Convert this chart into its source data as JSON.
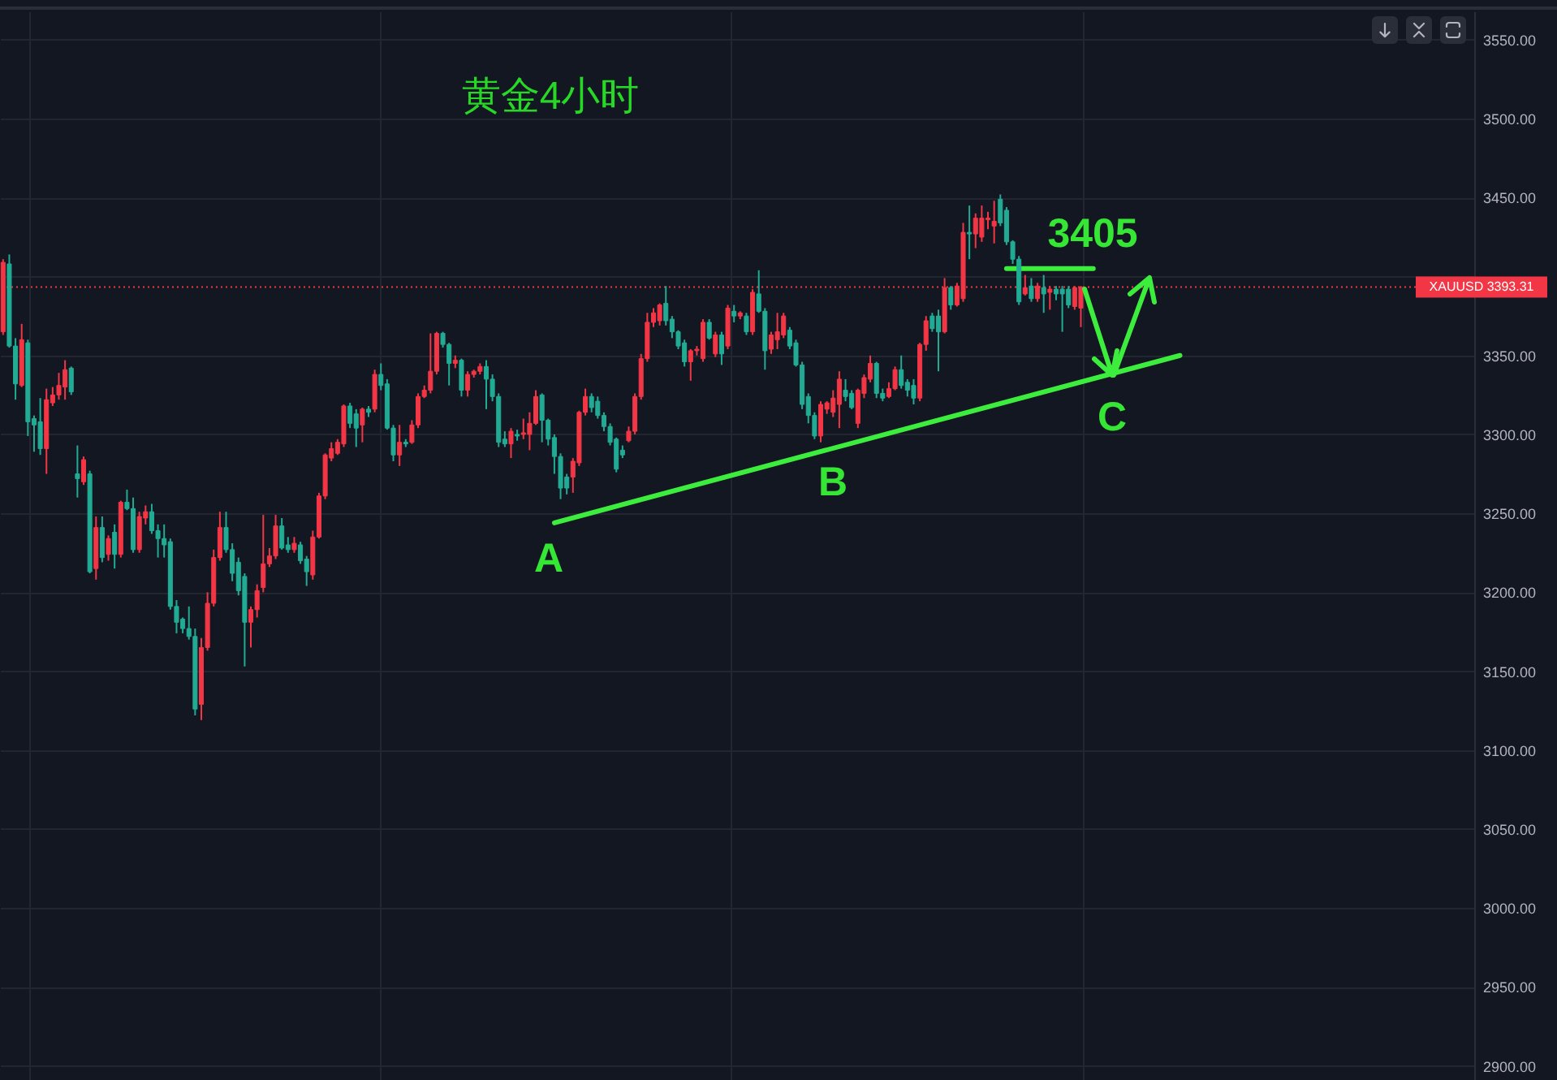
{
  "chart_data": {
    "type": "candlestick",
    "title": "黄金4小时",
    "categories": [
      null,
      null,
      null,
      null,
      null,
      null,
      null,
      null,
      null,
      null,
      null,
      null,
      null,
      null,
      null,
      null,
      null,
      null,
      null,
      null,
      null,
      null,
      null,
      null,
      null,
      null,
      null,
      null,
      null,
      null,
      null,
      null,
      null,
      null,
      null,
      null,
      null,
      null,
      null,
      null,
      null,
      null,
      null,
      null,
      null,
      null,
      null,
      null,
      null,
      null,
      null,
      null,
      null,
      null,
      null,
      null,
      null,
      null,
      null,
      null,
      null,
      null,
      null,
      null,
      null,
      null,
      null,
      null,
      null,
      null,
      null,
      null,
      null,
      null,
      null,
      null,
      null,
      null,
      null,
      null,
      null,
      null,
      null,
      null,
      null,
      null,
      null,
      null,
      null,
      null,
      null,
      null,
      null,
      null,
      null,
      null,
      null,
      null,
      null,
      null,
      null,
      null,
      null,
      null,
      null,
      null,
      null,
      null,
      null,
      null,
      null,
      null,
      null,
      null,
      null,
      null,
      null,
      null,
      null,
      null,
      null,
      null,
      null,
      null,
      null,
      null,
      null,
      null,
      null,
      null,
      null,
      null,
      null,
      null,
      null,
      null,
      null,
      null,
      null,
      null,
      null,
      null,
      null,
      null,
      null,
      null,
      null,
      null,
      null,
      null,
      null,
      null,
      null,
      null,
      null,
      null,
      null,
      null,
      null,
      null,
      null,
      null,
      null,
      null,
      null,
      null,
      null,
      null,
      null,
      null,
      null,
      null,
      null,
      null,
      null,
      null,
      null,
      null,
      null,
      null,
      null,
      null,
      null,
      null,
      null,
      null,
      null,
      null,
      null,
      null,
      null,
      null,
      null,
      null,
      null,
      null,
      null,
      null,
      null,
      null,
      null,
      null,
      null,
      null,
      null,
      null,
      null,
      null,
      null,
      null,
      null,
      null,
      null,
      null,
      null,
      null,
      null,
      null,
      null,
      null,
      null,
      null,
      null,
      null,
      null,
      null,
      null,
      null,
      null,
      null,
      null,
      null,
      null,
      null,
      null,
      null,
      null,
      null
    ],
    "ohlc": [
      [
        3365,
        3411,
        3363,
        3409
      ],
      [
        3408,
        3414,
        3355,
        3356
      ],
      [
        3356,
        3361,
        3322,
        3332
      ],
      [
        3331,
        3370,
        3330,
        3360
      ],
      [
        3358,
        3360,
        3299,
        3308
      ],
      [
        3310,
        3312,
        3289,
        3306
      ],
      [
        3308,
        3323,
        3287,
        3291
      ],
      [
        3291,
        3329,
        3275,
        3322
      ],
      [
        3320,
        3330,
        3318,
        3325
      ],
      [
        3325,
        3339,
        3322,
        3331
      ],
      [
        3330,
        3347,
        3322,
        3341
      ],
      [
        3342,
        3343,
        3325,
        3327
      ],
      [
        3275,
        3293,
        3260,
        3272
      ],
      [
        3270,
        3286,
        3268,
        3284
      ],
      [
        3275,
        3277,
        3212,
        3213
      ],
      [
        3215,
        3248,
        3208,
        3241
      ],
      [
        3241,
        3248,
        3219,
        3222
      ],
      [
        3224,
        3236,
        3220,
        3234
      ],
      [
        3238,
        3243,
        3215,
        3224
      ],
      [
        3224,
        3258,
        3222,
        3257
      ],
      [
        3257,
        3265,
        3252,
        3253
      ],
      [
        3253,
        3260,
        3225,
        3227
      ],
      [
        3227,
        3251,
        3225,
        3248
      ],
      [
        3247,
        3255,
        3243,
        3251
      ],
      [
        3251,
        3256,
        3237,
        3239
      ],
      [
        3239,
        3243,
        3222,
        3234
      ],
      [
        3234,
        3243,
        3222,
        3230
      ],
      [
        3232,
        3234,
        3189,
        3191
      ],
      [
        3191,
        3195,
        3174,
        3181
      ],
      [
        3183,
        3184,
        3174,
        3177
      ],
      [
        3177,
        3191,
        3170,
        3172
      ],
      [
        3172,
        3177,
        3122,
        3126
      ],
      [
        3129,
        3171,
        3119,
        3165
      ],
      [
        3165,
        3200,
        3163,
        3193
      ],
      [
        3193,
        3227,
        3191,
        3222
      ],
      [
        3222,
        3251,
        3220,
        3241
      ],
      [
        3241,
        3251,
        3225,
        3227
      ],
      [
        3227,
        3231,
        3207,
        3212
      ],
      [
        3219,
        3222,
        3198,
        3201
      ],
      [
        3210,
        3212,
        3153,
        3181
      ],
      [
        3181,
        3191,
        3165,
        3189
      ],
      [
        3189,
        3205,
        3184,
        3201
      ],
      [
        3203,
        3249,
        3200,
        3218
      ],
      [
        3218,
        3228,
        3216,
        3223
      ],
      [
        3223,
        3249,
        3221,
        3242
      ],
      [
        3242,
        3247,
        3227,
        3228
      ],
      [
        3230,
        3235,
        3225,
        3227
      ],
      [
        3227,
        3235,
        3225,
        3231
      ],
      [
        3230,
        3232,
        3218,
        3220
      ],
      [
        3221,
        3223,
        3204,
        3213
      ],
      [
        3211,
        3239,
        3208,
        3235
      ],
      [
        3235,
        3263,
        3234,
        3261
      ],
      [
        3261,
        3288,
        3259,
        3287
      ],
      [
        3285,
        3295,
        3283,
        3291
      ],
      [
        3288,
        3297,
        3287,
        3295
      ],
      [
        3294,
        3319,
        3292,
        3318
      ],
      [
        3318,
        3320,
        3304,
        3307
      ],
      [
        3313,
        3316,
        3292,
        3304
      ],
      [
        3306,
        3317,
        3295,
        3316
      ],
      [
        3316,
        3318,
        3311,
        3314
      ],
      [
        3316,
        3341,
        3314,
        3338
      ],
      [
        3338,
        3345,
        3328,
        3331
      ],
      [
        3332,
        3335,
        3303,
        3304
      ],
      [
        3304,
        3306,
        3283,
        3287
      ],
      [
        3287,
        3306,
        3280,
        3295
      ],
      [
        3295,
        3297,
        3292,
        3294
      ],
      [
        3295,
        3309,
        3294,
        3306
      ],
      [
        3306,
        3326,
        3304,
        3324
      ],
      [
        3324,
        3331,
        3323,
        3328
      ],
      [
        3328,
        3364,
        3326,
        3340
      ],
      [
        3340,
        3365,
        3338,
        3364
      ],
      [
        3364,
        3365,
        3355,
        3357
      ],
      [
        3357,
        3358,
        3331,
        3345
      ],
      [
        3345,
        3350,
        3342,
        3347
      ],
      [
        3347,
        3348,
        3324,
        3328
      ],
      [
        3328,
        3340,
        3324,
        3338
      ],
      [
        3338,
        3341,
        3336,
        3340
      ],
      [
        3340,
        3345,
        3338,
        3343
      ],
      [
        3343,
        3347,
        3316,
        3335
      ],
      [
        3335,
        3338,
        3321,
        3324
      ],
      [
        3324,
        3326,
        3292,
        3295
      ],
      [
        3297,
        3302,
        3292,
        3294
      ],
      [
        3294,
        3304,
        3285,
        3302
      ],
      [
        3300,
        3303,
        3296,
        3299
      ],
      [
        3300,
        3310,
        3297,
        3301
      ],
      [
        3300,
        3314,
        3290,
        3307
      ],
      [
        3307,
        3328,
        3306,
        3324
      ],
      [
        3325,
        3326,
        3295,
        3309
      ],
      [
        3309,
        3310,
        3293,
        3297
      ],
      [
        3298,
        3300,
        3275,
        3286
      ],
      [
        3286,
        3288,
        3259,
        3266
      ],
      [
        3273,
        3275,
        3262,
        3266
      ],
      [
        3273,
        3285,
        3263,
        3283
      ],
      [
        3282,
        3315,
        3280,
        3314
      ],
      [
        3314,
        3329,
        3312,
        3324
      ],
      [
        3324,
        3326,
        3314,
        3317
      ],
      [
        3321,
        3324,
        3310,
        3312
      ],
      [
        3312,
        3314,
        3302,
        3305
      ],
      [
        3305,
        3307,
        3293,
        3295
      ],
      [
        3297,
        3298,
        3276,
        3278
      ],
      [
        3290,
        3293,
        3285,
        3287
      ],
      [
        3296,
        3305,
        3295,
        3302
      ],
      [
        3302,
        3326,
        3300,
        3324
      ],
      [
        3324,
        3351,
        3322,
        3348
      ],
      [
        3348,
        3377,
        3346,
        3371
      ],
      [
        3371,
        3380,
        3368,
        3377
      ],
      [
        3372,
        3383,
        3369,
        3382
      ],
      [
        3383,
        3394,
        3369,
        3372
      ],
      [
        3373,
        3375,
        3361,
        3365
      ],
      [
        3365,
        3366,
        3354,
        3356
      ],
      [
        3358,
        3360,
        3343,
        3346
      ],
      [
        3346,
        3354,
        3334,
        3353
      ],
      [
        3353,
        3356,
        3350,
        3354
      ],
      [
        3348,
        3373,
        3346,
        3371
      ],
      [
        3371,
        3373,
        3360,
        3361
      ],
      [
        3351,
        3365,
        3349,
        3363
      ],
      [
        3363,
        3365,
        3344,
        3351
      ],
      [
        3356,
        3382,
        3354,
        3380
      ],
      [
        3378,
        3382,
        3371,
        3375
      ],
      [
        3375,
        3378,
        3373,
        3377
      ],
      [
        3375,
        3377,
        3363,
        3365
      ],
      [
        3365,
        3392,
        3363,
        3390
      ],
      [
        3389,
        3404,
        3377,
        3378
      ],
      [
        3378,
        3380,
        3341,
        3353
      ],
      [
        3354,
        3365,
        3351,
        3363
      ],
      [
        3360,
        3377,
        3354,
        3365
      ],
      [
        3363,
        3377,
        3361,
        3375
      ],
      [
        3366,
        3368,
        3354,
        3356
      ],
      [
        3358,
        3360,
        3343,
        3344
      ],
      [
        3344,
        3346,
        3316,
        3319
      ],
      [
        3324,
        3326,
        3307,
        3312
      ],
      [
        3312,
        3314,
        3297,
        3299
      ],
      [
        3299,
        3321,
        3295,
        3319
      ],
      [
        3316,
        3321,
        3313,
        3320
      ],
      [
        3314,
        3328,
        3311,
        3323
      ],
      [
        3319,
        3340,
        3304,
        3335
      ],
      [
        3328,
        3335,
        3321,
        3324
      ],
      [
        3326,
        3328,
        3316,
        3317
      ],
      [
        3307,
        3329,
        3304,
        3328
      ],
      [
        3326,
        3338,
        3323,
        3336
      ],
      [
        3335,
        3350,
        3333,
        3345
      ],
      [
        3345,
        3346,
        3323,
        3326
      ],
      [
        3326,
        3329,
        3321,
        3323
      ],
      [
        3324,
        3333,
        3323,
        3329
      ],
      [
        3329,
        3343,
        3328,
        3341
      ],
      [
        3341,
        3350,
        3329,
        3331
      ],
      [
        3333,
        3335,
        3324,
        3328
      ],
      [
        3331,
        3335,
        3319,
        3323
      ],
      [
        3323,
        3358,
        3321,
        3357
      ],
      [
        3357,
        3375,
        3353,
        3372
      ],
      [
        3375,
        3377,
        3365,
        3367
      ],
      [
        3375,
        3379,
        3340,
        3365
      ],
      [
        3365,
        3399,
        3364,
        3393
      ],
      [
        3393,
        3394,
        3379,
        3382
      ],
      [
        3382,
        3396,
        3381,
        3394
      ],
      [
        3386,
        3434,
        3384,
        3428
      ],
      [
        3428,
        3445,
        3411,
        3427
      ],
      [
        3427,
        3440,
        3418,
        3437
      ],
      [
        3425,
        3445,
        3422,
        3437
      ],
      [
        3436,
        3441,
        3430,
        3437
      ],
      [
        3432,
        3448,
        3421,
        3435
      ],
      [
        3449,
        3452,
        3432,
        3434
      ],
      [
        3442,
        3444,
        3420,
        3422
      ],
      [
        3422,
        3423,
        3408,
        3411
      ],
      [
        3411,
        3413,
        3382,
        3384
      ],
      [
        3389,
        3401,
        3388,
        3393
      ],
      [
        3394,
        3399,
        3384,
        3386
      ],
      [
        3386,
        3396,
        3384,
        3394
      ],
      [
        3393,
        3401,
        3377,
        3389
      ],
      [
        3390,
        3394,
        3379,
        3392
      ],
      [
        3392,
        3394,
        3385,
        3389
      ],
      [
        3392,
        3394,
        3365,
        3389
      ],
      [
        3392,
        3394,
        3380,
        3382
      ],
      [
        3381,
        3394,
        3379,
        3393
      ],
      [
        3380,
        3394,
        3368,
        3393.31
      ],
      null,
      null,
      null,
      null,
      null,
      null,
      null,
      null,
      null,
      null,
      null,
      null,
      null,
      null,
      null,
      null,
      null,
      null,
      null,
      null,
      null,
      null,
      null,
      null,
      null,
      null,
      null,
      null,
      null,
      null,
      null,
      null,
      null,
      null,
      null,
      null,
      null,
      null,
      null,
      null,
      null,
      null,
      null,
      null,
      null,
      null,
      null,
      null,
      null,
      null,
      null,
      null,
      null,
      null,
      null,
      null,
      null,
      null,
      null,
      null,
      null,
      null,
      null
    ],
    "colors": [
      "#f23645",
      "#22ab94",
      "#22ab94",
      "#f23645",
      "#22ab94",
      "#22ab94",
      "#22ab94",
      "#f23645",
      "#f23645",
      "#f23645",
      "#f23645",
      "#22ab94",
      "#22ab94",
      "#f23645",
      "#22ab94",
      "#f23645",
      "#22ab94",
      "#f23645",
      "#22ab94",
      "#f23645",
      "#22ab94",
      "#22ab94",
      "#f23645",
      "#f23645",
      "#22ab94",
      "#22ab94",
      "#22ab94",
      "#22ab94",
      "#22ab94",
      "#22ab94",
      "#22ab94",
      "#22ab94",
      "#f23645",
      "#f23645",
      "#f23645",
      "#f23645",
      "#22ab94",
      "#22ab94",
      "#22ab94",
      "#22ab94",
      "#f23645",
      "#f23645",
      "#f23645",
      "#f23645",
      "#f23645",
      "#22ab94",
      "#22ab94",
      "#f23645",
      "#22ab94",
      "#22ab94",
      "#f23645",
      "#f23645",
      "#f23645",
      "#f23645",
      "#f23645",
      "#f23645",
      "#22ab94",
      "#22ab94",
      "#f23645",
      "#22ab94",
      "#f23645",
      "#22ab94",
      "#22ab94",
      "#22ab94",
      "#f23645",
      "#22ab94",
      "#f23645",
      "#f23645",
      "#f23645",
      "#f23645",
      "#f23645",
      "#22ab94",
      "#22ab94",
      "#f23645",
      "#22ab94",
      "#f23645",
      "#f23645",
      "#f23645",
      "#22ab94",
      "#22ab94",
      "#22ab94",
      "#22ab94",
      "#f23645",
      "#22ab94",
      "#f23645",
      "#f23645",
      "#f23645",
      "#22ab94",
      "#22ab94",
      "#22ab94",
      "#22ab94",
      "#22ab94",
      "#f23645",
      "#f23645",
      "#f23645",
      "#22ab94",
      "#22ab94",
      "#22ab94",
      "#22ab94",
      "#22ab94",
      "#22ab94",
      "#f23645",
      "#f23645",
      "#f23645",
      "#f23645",
      "#f23645",
      "#f23645",
      "#22ab94",
      "#22ab94",
      "#22ab94",
      "#22ab94",
      "#f23645",
      "#f23645",
      "#f23645",
      "#22ab94",
      "#f23645",
      "#22ab94",
      "#f23645",
      "#22ab94",
      "#f23645",
      "#22ab94",
      "#f23645",
      "#22ab94",
      "#22ab94",
      "#f23645",
      "#f23645",
      "#f23645",
      "#22ab94",
      "#22ab94",
      "#22ab94",
      "#22ab94",
      "#22ab94",
      "#f23645",
      "#f23645",
      "#f23645",
      "#f23645",
      "#22ab94",
      "#22ab94",
      "#f23645",
      "#f23645",
      "#f23645",
      "#22ab94",
      "#22ab94",
      "#f23645",
      "#f23645",
      "#22ab94",
      "#22ab94",
      "#22ab94",
      "#f23645",
      "#f23645",
      "#22ab94",
      "#22ab94",
      "#f23645",
      "#22ab94",
      "#f23645",
      "#f23645",
      "#22ab94",
      "#f23645",
      "#f23645",
      "#f23645",
      "#f23645",
      "#22ab94",
      "#22ab94",
      "#22ab94",
      "#22ab94",
      "#f23645",
      "#22ab94",
      "#f23645",
      "#22ab94",
      "#f23645",
      "#22ab94",
      "#22ab94",
      "#22ab94",
      "#f23645",
      "#f23645",
      null,
      null,
      null,
      null,
      null,
      null,
      null,
      null,
      null,
      null,
      null,
      null,
      null,
      null,
      null,
      null,
      null,
      null,
      null,
      null,
      null,
      null,
      null,
      null,
      null,
      null,
      null,
      null,
      null,
      null,
      null,
      null,
      null,
      null,
      null,
      null,
      null,
      null,
      null,
      null,
      null,
      null,
      null,
      null,
      null,
      null,
      null,
      null,
      null,
      null,
      null,
      null,
      null,
      null,
      null,
      null,
      null,
      null,
      null,
      null,
      null,
      null,
      null
    ],
    "series": [
      {
        "type": "line",
        "color": "#3ded3d",
        "values": [
          null,
          null,
          null,
          null,
          null,
          null,
          null,
          null,
          null,
          null,
          null,
          null,
          null,
          null,
          null,
          null,
          null,
          null,
          null,
          null,
          null,
          null,
          null,
          null,
          null,
          null,
          null,
          null,
          null,
          null,
          null,
          null,
          null,
          null,
          null,
          null,
          null,
          null,
          null,
          null,
          null,
          null,
          null,
          null,
          null,
          null,
          null,
          null,
          null,
          null,
          null,
          null,
          null,
          null,
          null,
          null,
          null,
          null,
          null,
          null,
          null,
          null,
          null,
          null,
          null,
          null,
          null,
          null,
          null,
          null,
          null,
          null,
          null,
          null,
          null,
          null,
          null,
          null,
          null,
          null,
          null,
          null,
          null,
          null,
          null,
          null,
          null,
          null,
          null,
          3244,
          null,
          null,
          null,
          null,
          null,
          null,
          null,
          null,
          null,
          null,
          null,
          null,
          null,
          null,
          null,
          null,
          null,
          null,
          null,
          null,
          null,
          null,
          null,
          null,
          null,
          null,
          null,
          null,
          null,
          null,
          null,
          null,
          null,
          null,
          null,
          null,
          null,
          null,
          null,
          null,
          null,
          null,
          null,
          null,
          null,
          null,
          null,
          null,
          null,
          null,
          null,
          null,
          null,
          null,
          null,
          null,
          null,
          null,
          null,
          null,
          null,
          null,
          null,
          null,
          null,
          null,
          null,
          null,
          null,
          null,
          null,
          null,
          null,
          null,
          null,
          null,
          null,
          null,
          null,
          null,
          null,
          null,
          null,
          null,
          null,
          null,
          null,
          null,
          null,
          null,
          null,
          null,
          null,
          null,
          null,
          null,
          null,
          null,
          null,
          null,
          3350,
          null,
          null,
          null,
          null,
          null,
          null,
          null,
          null,
          null,
          null,
          null,
          null,
          null,
          null,
          null,
          null,
          null,
          null,
          null,
          null,
          null,
          null,
          null,
          null,
          null,
          null,
          null,
          null,
          null,
          null,
          null,
          null,
          null,
          null,
          null,
          null,
          null,
          null,
          null,
          null,
          null,
          null,
          null,
          null,
          null,
          null,
          null
        ]
      },
      {
        "type": "line",
        "color": "#3ded3d",
        "values": [
          null,
          null,
          null,
          null,
          null,
          null,
          null,
          null,
          null,
          null,
          null,
          null,
          null,
          null,
          null,
          null,
          null,
          null,
          null,
          null,
          null,
          null,
          null,
          null,
          null,
          null,
          null,
          null,
          null,
          null,
          null,
          null,
          null,
          null,
          null,
          null,
          null,
          null,
          null,
          null,
          null,
          null,
          null,
          null,
          null,
          null,
          null,
          null,
          null,
          null,
          null,
          null,
          null,
          null,
          null,
          null,
          null,
          null,
          null,
          null,
          null,
          null,
          null,
          null,
          null,
          null,
          null,
          null,
          null,
          null,
          null,
          null,
          null,
          null,
          null,
          null,
          null,
          null,
          null,
          null,
          null,
          null,
          null,
          null,
          null,
          null,
          null,
          null,
          null,
          null,
          null,
          null,
          null,
          null,
          null,
          null,
          null,
          null,
          null,
          null,
          null,
          null,
          null,
          null,
          null,
          null,
          null,
          null,
          null,
          null,
          null,
          null,
          null,
          null,
          null,
          null,
          null,
          null,
          null,
          null,
          null,
          null,
          null,
          null,
          null,
          null,
          null,
          null,
          null,
          null,
          null,
          null,
          null,
          null,
          null,
          null,
          null,
          null,
          null,
          null,
          null,
          null,
          null,
          null,
          null,
          null,
          null,
          null,
          null,
          null,
          null,
          null,
          null,
          null,
          null,
          null,
          null,
          null,
          null,
          null,
          null,
          null,
          3405,
          null,
          null,
          null,
          null,
          null,
          null,
          null,
          null,
          null,
          null,
          null,
          null,
          null,
          3405,
          null,
          null,
          null,
          null,
          null,
          null,
          null,
          null,
          null,
          null,
          null,
          null,
          null,
          null,
          null,
          null,
          null,
          null,
          null,
          null,
          null,
          null,
          null,
          null,
          null,
          null,
          null,
          null,
          null,
          null,
          null,
          null,
          null,
          null,
          null,
          null,
          null,
          null,
          null,
          null,
          null,
          null,
          null,
          null,
          null,
          null,
          null,
          null,
          null,
          null,
          null,
          null,
          null,
          null,
          null,
          null,
          null,
          null,
          null,
          null,
          null
        ]
      }
    ],
    "ylim": [
      2891,
      3568
    ],
    "yticks": [
      {
        "value": 2900,
        "label": "2900.00"
      },
      {
        "value": 2950,
        "label": "2950.00"
      },
      {
        "value": 3000,
        "label": "3000.00"
      },
      {
        "value": 3050,
        "label": "3050.00"
      },
      {
        "value": 3100,
        "label": "3100.00"
      },
      {
        "value": 3150,
        "label": "3150.00"
      },
      {
        "value": 3200,
        "label": "3200.00"
      },
      {
        "value": 3250,
        "label": "3250.00"
      },
      {
        "value": 3300,
        "label": "3300.00"
      },
      {
        "value": 3350,
        "label": "3350.00"
      },
      {
        "value": 3400,
        "label": null
      },
      {
        "value": 3450,
        "label": "3450.00"
      },
      {
        "value": 3500,
        "label": "3500.00"
      },
      {
        "value": 3550,
        "label": "3550.00"
      }
    ],
    "grid": true,
    "tick_labels": "y",
    "ref_lines": [
      {
        "axis": "y",
        "value": 3393.31,
        "label": "XAUUSD 3393.31",
        "color": "#f23645",
        "line_style": "dotted"
      }
    ],
    "annotations": [
      "3405",
      "A",
      "B",
      "C"
    ]
  }
}
